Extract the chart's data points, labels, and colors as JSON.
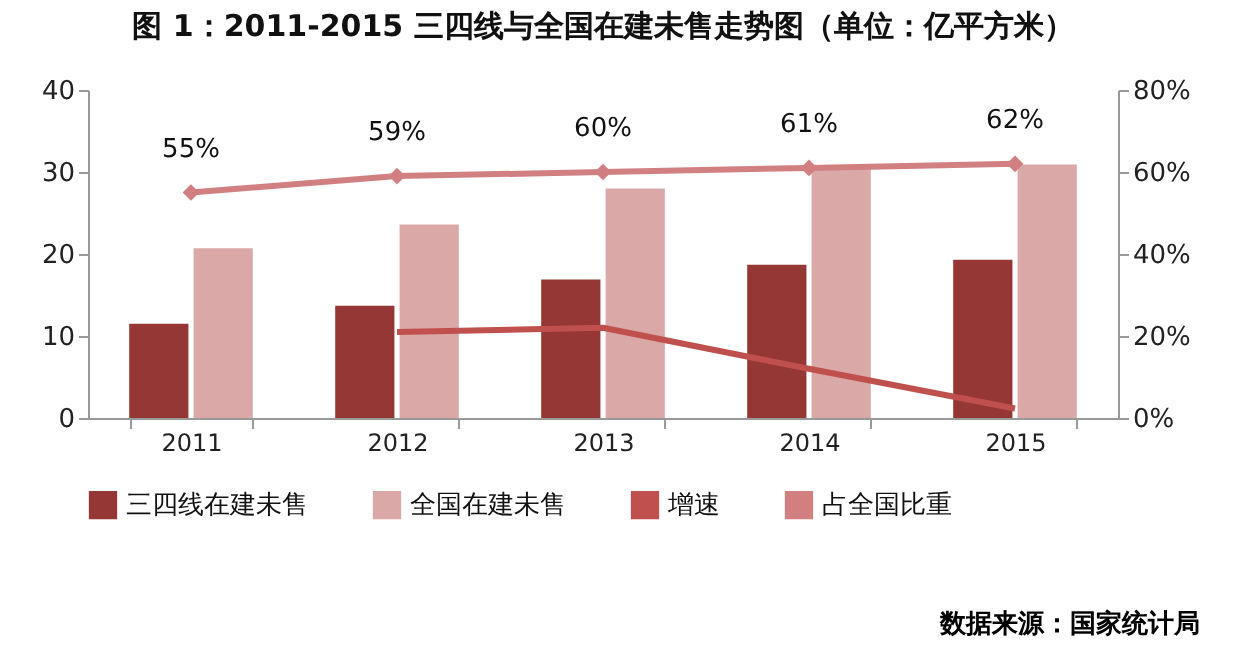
{
  "chart_data": {
    "type": "bar",
    "title": "图 1：2011-2015 三四线与全国在建未售走势图（单位：亿平方米）",
    "categories": [
      "2011",
      "2012",
      "2013",
      "2014",
      "2015"
    ],
    "series": [
      {
        "name": "三四线在建未售",
        "color": "#953735",
        "values": [
          11.5,
          13.7,
          16.9,
          18.7,
          19.3
        ]
      },
      {
        "name": "全国在建未售",
        "color": "#dba8a8",
        "values": [
          20.7,
          23.6,
          28,
          30.5,
          30.9
        ]
      },
      {
        "name": "增速",
        "type": "line",
        "axis": "y2",
        "color": "#c0504d",
        "marker": "none",
        "values": [
          null,
          21,
          22,
          12,
          2.3
        ]
      },
      {
        "name": "占全国比重",
        "type": "line",
        "axis": "y2",
        "color": "#d27f82",
        "marker": "diamond",
        "values": [
          55,
          59,
          60,
          61,
          62
        ],
        "value_labels": [
          "55%",
          "59%",
          "60%",
          "61%",
          "62%"
        ]
      }
    ],
    "ylim": [
      0,
      40
    ],
    "yticks": [
      0,
      10,
      20,
      30,
      40
    ],
    "y2lim": [
      0,
      80
    ],
    "y2ticks": [
      {
        "value": 0,
        "label": "0%"
      },
      {
        "value": 20,
        "label": "20%"
      },
      {
        "value": 40,
        "label": "40%"
      },
      {
        "value": 60,
        "label": "60%"
      },
      {
        "value": 80,
        "label": "80%"
      }
    ],
    "grid": false,
    "legend": "bottom",
    "line_style": "solid",
    "annotations": [
      "数据来源：国家统计局"
    ]
  }
}
